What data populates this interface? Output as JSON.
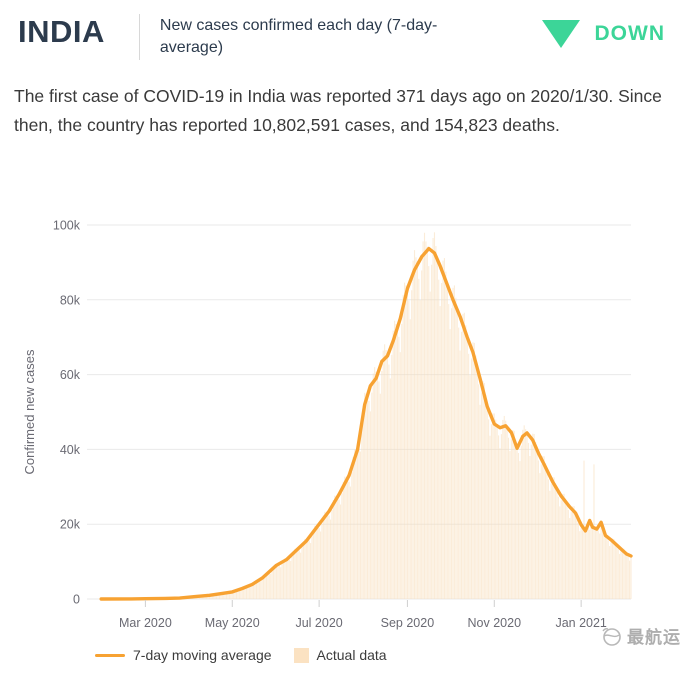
{
  "header": {
    "country": "INDIA",
    "subtitle": "New cases confirmed each day (7-day-average)",
    "trend_label": "DOWN",
    "trend_color": "#3cd598"
  },
  "summary": {
    "text": "The first case of COVID-19 in India was reported 371 days ago on 2020/1/30. Since then, the country has reported 10,802,591 cases, and 154,823 deaths."
  },
  "watermark": {
    "text": "最航运"
  },
  "chart_data": {
    "type": "line",
    "title": "",
    "xlabel": "",
    "ylabel": "Confirmed new cases",
    "ylim": [
      0,
      100000
    ],
    "grid": "horizontal",
    "legend_position": "bottom-left",
    "colors": {
      "line": "#f7a232",
      "bars": "#f7ddb8",
      "grid": "#eaeaea",
      "axis_text": "#6a6a73",
      "tick": "#cfcfcf"
    },
    "y_ticks": [
      {
        "value": 0,
        "label": "0"
      },
      {
        "value": 20000,
        "label": "20k"
      },
      {
        "value": 40000,
        "label": "40k"
      },
      {
        "value": 60000,
        "label": "60k"
      },
      {
        "value": 80000,
        "label": "80k"
      },
      {
        "value": 100000,
        "label": "100k"
      }
    ],
    "x_domain": [
      "2020-01-20",
      "2021-02-05"
    ],
    "x_ticks": [
      {
        "date": "2020-03-01",
        "label": "Mar 2020"
      },
      {
        "date": "2020-05-01",
        "label": "May 2020"
      },
      {
        "date": "2020-07-01",
        "label": "Jul 2020"
      },
      {
        "date": "2020-09-01",
        "label": "Sep 2020"
      },
      {
        "date": "2020-11-01",
        "label": "Nov 2020"
      },
      {
        "date": "2021-01-01",
        "label": "Jan 2021"
      }
    ],
    "legend": [
      {
        "label": "7-day moving average",
        "type": "line",
        "color": "#f7a232"
      },
      {
        "label": "Actual data",
        "type": "box",
        "color": "#fbe2c2"
      }
    ],
    "series": [
      {
        "name": "7-day moving average",
        "points": [
          [
            "2020-01-30",
            0
          ],
          [
            "2020-02-20",
            30
          ],
          [
            "2020-03-01",
            80
          ],
          [
            "2020-03-15",
            150
          ],
          [
            "2020-03-25",
            250
          ],
          [
            "2020-04-05",
            650
          ],
          [
            "2020-04-15",
            1000
          ],
          [
            "2020-04-24",
            1500
          ],
          [
            "2020-05-01",
            1900
          ],
          [
            "2020-05-08",
            2800
          ],
          [
            "2020-05-15",
            3900
          ],
          [
            "2020-05-22",
            5600
          ],
          [
            "2020-06-01",
            9000
          ],
          [
            "2020-06-08",
            10500
          ],
          [
            "2020-06-15",
            13000
          ],
          [
            "2020-06-22",
            15500
          ],
          [
            "2020-07-01",
            20000
          ],
          [
            "2020-07-08",
            23500
          ],
          [
            "2020-07-15",
            28000
          ],
          [
            "2020-07-22",
            33000
          ],
          [
            "2020-07-28",
            40000
          ],
          [
            "2020-08-02",
            52000
          ],
          [
            "2020-08-06",
            57000
          ],
          [
            "2020-08-10",
            59000
          ],
          [
            "2020-08-14",
            63500
          ],
          [
            "2020-08-18",
            65000
          ],
          [
            "2020-08-22",
            69000
          ],
          [
            "2020-08-27",
            75000
          ],
          [
            "2020-09-01",
            83000
          ],
          [
            "2020-09-06",
            88000
          ],
          [
            "2020-09-11",
            91500
          ],
          [
            "2020-09-16",
            93700
          ],
          [
            "2020-09-20",
            92500
          ],
          [
            "2020-09-24",
            89000
          ],
          [
            "2020-09-28",
            85000
          ],
          [
            "2020-10-03",
            80000
          ],
          [
            "2020-10-08",
            75500
          ],
          [
            "2020-10-13",
            70000
          ],
          [
            "2020-10-17",
            66000
          ],
          [
            "2020-10-22",
            59000
          ],
          [
            "2020-10-27",
            51500
          ],
          [
            "2020-11-01",
            46800
          ],
          [
            "2020-11-05",
            45800
          ],
          [
            "2020-11-09",
            46300
          ],
          [
            "2020-11-13",
            44500
          ],
          [
            "2020-11-17",
            40300
          ],
          [
            "2020-11-21",
            43500
          ],
          [
            "2020-11-24",
            44400
          ],
          [
            "2020-11-28",
            42500
          ],
          [
            "2020-12-02",
            39000
          ],
          [
            "2020-12-06",
            36000
          ],
          [
            "2020-12-12",
            31300
          ],
          [
            "2020-12-18",
            27500
          ],
          [
            "2020-12-24",
            24600
          ],
          [
            "2020-12-28",
            23000
          ],
          [
            "2021-01-01",
            19800
          ],
          [
            "2021-01-04",
            18200
          ],
          [
            "2021-01-07",
            21000
          ],
          [
            "2021-01-09",
            19200
          ],
          [
            "2021-01-12",
            18700
          ],
          [
            "2021-01-15",
            20500
          ],
          [
            "2021-01-18",
            17000
          ],
          [
            "2021-01-22",
            15800
          ],
          [
            "2021-01-26",
            14400
          ],
          [
            "2021-01-30",
            13000
          ],
          [
            "2021-02-02",
            12000
          ],
          [
            "2021-02-05",
            11500
          ]
        ]
      }
    ],
    "actual_data": {
      "note": "daily bars oscillate around the 7-day average with a weekly pattern",
      "start": "2020-01-30",
      "end": "2021-02-05",
      "weekday_factors": [
        0.88,
        0.96,
        1.04,
        1.06,
        1.03,
        1.01,
        0.95
      ],
      "spikes": [
        [
          "2021-01-03",
          37000
        ],
        [
          "2021-01-10",
          36000
        ]
      ]
    }
  }
}
